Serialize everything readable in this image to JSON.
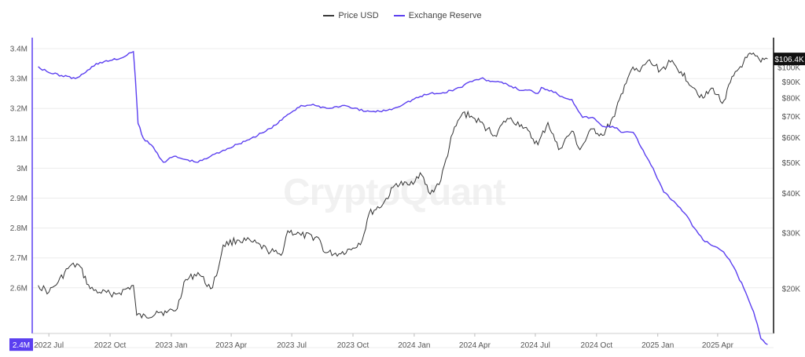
{
  "watermark": "CryptoQuant",
  "legend": [
    {
      "label": "Price USD",
      "color": "#3a3a3a"
    },
    {
      "label": "Exchange Reserve",
      "color": "#5b3ff0"
    }
  ],
  "colors": {
    "reserve": "#5b3ff0",
    "price": "#333333",
    "grid": "#ececec"
  },
  "chart_data": {
    "type": "line",
    "title": "",
    "x_ticks": [
      "2022 Jul",
      "2022 Oct",
      "2023 Jan",
      "2023 Apr",
      "2023 Jul",
      "2023 Oct",
      "2024 Jan",
      "2024 Apr",
      "2024 Jul",
      "2024 Oct",
      "2025 Jan",
      "2025 Apr"
    ],
    "left_axis": {
      "ticks": [
        "3.4M",
        "3.3M",
        "3.2M",
        "3.1M",
        "3M",
        "2.9M",
        "2.8M",
        "2.7M",
        "2.6M"
      ],
      "ylim": [
        2.4,
        3.4
      ],
      "unit": "M"
    },
    "right_axis": {
      "scale": "log",
      "ticks": [
        "$100K",
        "$90K",
        "$80K",
        "$70K",
        "$60K",
        "$50K",
        "$40K",
        "$30K",
        "$20K"
      ],
      "ylim": [
        14000,
        112000
      ]
    },
    "current_labels": {
      "reserve": "2.4M",
      "price": "$106.4K"
    },
    "series": [
      {
        "name": "Exchange Reserve",
        "axis": "left",
        "unit": "M",
        "x": [
          "2022-06-15",
          "2022-07-01",
          "2022-07-20",
          "2022-08-10",
          "2022-08-25",
          "2022-09-10",
          "2022-10-01",
          "2022-10-20",
          "2022-11-05",
          "2022-11-08",
          "2022-11-12",
          "2022-11-20",
          "2022-12-05",
          "2022-12-20",
          "2023-01-05",
          "2023-01-20",
          "2023-02-10",
          "2023-03-01",
          "2023-03-20",
          "2023-04-10",
          "2023-05-01",
          "2023-05-20",
          "2023-06-10",
          "2023-06-25",
          "2023-07-15",
          "2023-08-05",
          "2023-08-25",
          "2023-09-15",
          "2023-10-01",
          "2023-10-20",
          "2023-11-10",
          "2023-12-01",
          "2023-12-20",
          "2024-01-10",
          "2024-01-25",
          "2024-02-10",
          "2024-02-25",
          "2024-03-10",
          "2024-03-25",
          "2024-04-10",
          "2024-04-30",
          "2024-05-20",
          "2024-06-10",
          "2024-06-25",
          "2024-07-05",
          "2024-07-10",
          "2024-07-25",
          "2024-08-10",
          "2024-08-25",
          "2024-09-10",
          "2024-09-25",
          "2024-10-10",
          "2024-10-25",
          "2024-11-10",
          "2024-11-25",
          "2024-12-10",
          "2024-12-25",
          "2025-01-10",
          "2025-01-25",
          "2025-02-10",
          "2025-02-25",
          "2025-03-10",
          "2025-03-25",
          "2025-04-10",
          "2025-04-25",
          "2025-05-10",
          "2025-05-25",
          "2025-06-05",
          "2025-06-15"
        ],
        "values": [
          3.34,
          3.32,
          3.31,
          3.3,
          3.32,
          3.35,
          3.36,
          3.37,
          3.39,
          3.3,
          3.15,
          3.1,
          3.07,
          3.02,
          3.04,
          3.03,
          3.02,
          3.04,
          3.06,
          3.08,
          3.1,
          3.12,
          3.15,
          3.18,
          3.21,
          3.21,
          3.2,
          3.21,
          3.2,
          3.19,
          3.19,
          3.2,
          3.22,
          3.24,
          3.25,
          3.25,
          3.26,
          3.27,
          3.29,
          3.3,
          3.29,
          3.28,
          3.26,
          3.26,
          3.25,
          3.27,
          3.26,
          3.24,
          3.23,
          3.17,
          3.17,
          3.14,
          3.14,
          3.12,
          3.12,
          3.06,
          3.0,
          2.92,
          2.89,
          2.85,
          2.8,
          2.76,
          2.74,
          2.72,
          2.67,
          2.6,
          2.52,
          2.43,
          2.41
        ]
      },
      {
        "name": "Price USD",
        "axis": "right",
        "unit": "USD",
        "x": [
          "2022-06-15",
          "2022-07-01",
          "2022-07-15",
          "2022-08-01",
          "2022-08-15",
          "2022-09-01",
          "2022-09-15",
          "2022-10-01",
          "2022-10-15",
          "2022-11-05",
          "2022-11-10",
          "2022-11-25",
          "2022-12-10",
          "2022-12-25",
          "2023-01-10",
          "2023-01-20",
          "2023-02-10",
          "2023-03-01",
          "2023-03-10",
          "2023-03-20",
          "2023-04-10",
          "2023-05-01",
          "2023-05-25",
          "2023-06-15",
          "2023-06-25",
          "2023-07-15",
          "2023-08-10",
          "2023-08-20",
          "2023-09-10",
          "2023-10-01",
          "2023-10-15",
          "2023-10-25",
          "2023-11-15",
          "2023-12-05",
          "2023-12-25",
          "2024-01-10",
          "2024-01-25",
          "2024-02-10",
          "2024-02-28",
          "2024-03-14",
          "2024-04-01",
          "2024-04-20",
          "2024-05-01",
          "2024-05-20",
          "2024-06-10",
          "2024-07-05",
          "2024-07-20",
          "2024-08-05",
          "2024-08-25",
          "2024-09-06",
          "2024-09-25",
          "2024-10-10",
          "2024-10-28",
          "2024-11-12",
          "2024-11-22",
          "2024-12-05",
          "2024-12-17",
          "2025-01-05",
          "2025-01-20",
          "2025-02-05",
          "2025-02-25",
          "2025-03-10",
          "2025-03-25",
          "2025-04-08",
          "2025-04-25",
          "2025-05-10",
          "2025-05-22",
          "2025-06-05",
          "2025-06-15"
        ],
        "values": [
          20500,
          19500,
          21000,
          23500,
          23800,
          20000,
          19500,
          19300,
          19400,
          20500,
          16500,
          16200,
          17000,
          16800,
          17300,
          21000,
          22500,
          20000,
          22000,
          27500,
          28500,
          28200,
          26500,
          25500,
          30500,
          29500,
          29000,
          26000,
          25800,
          26900,
          28500,
          34500,
          37000,
          43000,
          42500,
          46500,
          39800,
          44000,
          62000,
          72000,
          69000,
          64000,
          61000,
          69000,
          66000,
          57000,
          67000,
          55000,
          63000,
          55000,
          64000,
          61000,
          70000,
          88000,
          98000,
          97000,
          105000,
          98000,
          104000,
          97000,
          86000,
          80000,
          86000,
          77000,
          94000,
          104000,
          110000,
          104000,
          106400
        ]
      }
    ]
  }
}
